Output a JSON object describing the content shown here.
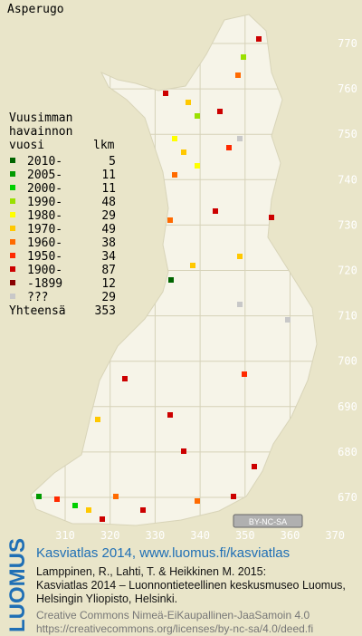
{
  "title": "Asperugo",
  "legend": {
    "header": [
      "Vuusimman",
      "havainnon",
      "vuosi"
    ],
    "count_header": "lkm",
    "rows": [
      {
        "label": "2010-",
        "count": 5,
        "color": "#006400"
      },
      {
        "label": "2005-",
        "count": 11,
        "color": "#009a00"
      },
      {
        "label": "2000-",
        "count": 11,
        "color": "#00d000"
      },
      {
        "label": "1990-",
        "count": 48,
        "color": "#9ae000"
      },
      {
        "label": "1980-",
        "count": 29,
        "color": "#ffff00"
      },
      {
        "label": "1970-",
        "count": 49,
        "color": "#ffc800"
      },
      {
        "label": "1960-",
        "count": 38,
        "color": "#ff6a00"
      },
      {
        "label": "1950-",
        "count": 34,
        "color": "#ff2a00"
      },
      {
        "label": "1900-",
        "count": 87,
        "color": "#cc0000"
      },
      {
        "label": "-1899",
        "count": 12,
        "color": "#880000"
      },
      {
        "label": "???",
        "count": 29,
        "color": "#c8c8c8"
      }
    ],
    "total_label": "Yhteensä",
    "total": 353
  },
  "grid": {
    "xticks": [
      310,
      320,
      330,
      340,
      350,
      360,
      370
    ],
    "yticks": [
      770,
      760,
      750,
      740,
      730,
      720,
      710,
      700,
      690,
      680,
      670
    ]
  },
  "license_badge": "BY-NC-SA",
  "footer": {
    "logo": "LUOMUS",
    "heading": "Kasviatlas 2014, www.luomus.fi/kasviatlas",
    "citation": [
      "Lamppinen, R., Lahti, T. & Heikkinen M. 2015:",
      "Kasviatlas 2014 – Luonnontieteellinen keskusmuseo Luomus,",
      "Helsingin Yliopisto, Helsinki."
    ],
    "license": [
      "Creative Commons Nimeä-EiKaupallinen-JaaSamoin 4.0",
      "https://creativecommons.org/licenses/by-nc-sa/4.0/deed.fi"
    ]
  }
}
